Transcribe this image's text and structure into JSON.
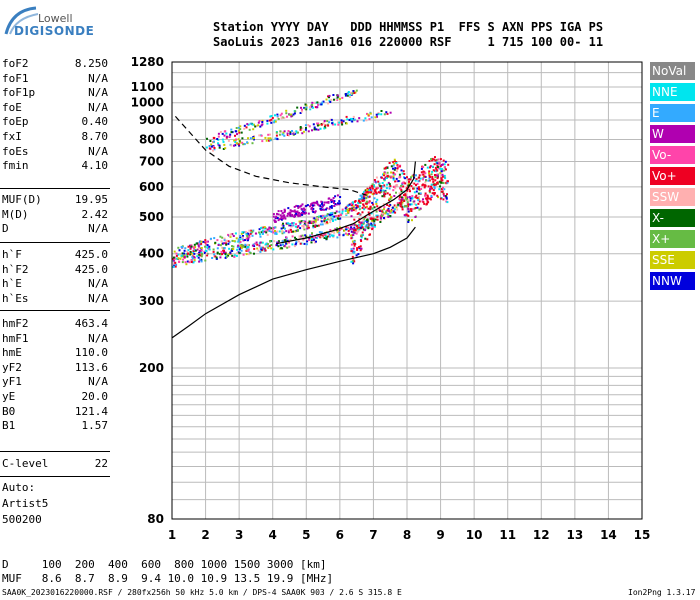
{
  "logo": {
    "line1": "Lowell",
    "line2": "DIGISONDE"
  },
  "header": {
    "line1": "Station YYYY DAY   DDD HHMMSS P1  FFS S AXN PPS IGA PS",
    "line2": "SaoLuis 2023 Jan16 016 220000 RSF     1 715 100 00- 11"
  },
  "params": {
    "group1": [
      {
        "name": "foF2",
        "value": "8.250"
      },
      {
        "name": "foF1",
        "value": "N/A"
      },
      {
        "name": "foF1p",
        "value": "N/A"
      },
      {
        "name": "foE",
        "value": "N/A"
      },
      {
        "name": "foEp",
        "value": "0.40"
      },
      {
        "name": "fxI",
        "value": "8.70"
      },
      {
        "name": "foEs",
        "value": "N/A"
      },
      {
        "name": "fmin",
        "value": "4.10"
      }
    ],
    "group2": [
      {
        "name": "MUF(D)",
        "value": "19.95"
      },
      {
        "name": "M(D)",
        "value": "2.42"
      },
      {
        "name": "D",
        "value": "N/A"
      }
    ],
    "group3": [
      {
        "name": "h`F",
        "value": "425.0"
      },
      {
        "name": "h`F2",
        "value": "425.0"
      },
      {
        "name": "h`E",
        "value": "N/A"
      },
      {
        "name": "h`Es",
        "value": "N/A"
      }
    ],
    "group4": [
      {
        "name": "hmF2",
        "value": "463.4"
      },
      {
        "name": "hmF1",
        "value": "N/A"
      },
      {
        "name": "hmE",
        "value": "110.0"
      },
      {
        "name": "yF2",
        "value": "113.6"
      },
      {
        "name": "yF1",
        "value": "N/A"
      },
      {
        "name": "yE",
        "value": "20.0"
      },
      {
        "name": "B0",
        "value": "121.4"
      },
      {
        "name": "B1",
        "value": "1.57"
      }
    ],
    "clevel": {
      "name": "C-level",
      "value": "22"
    },
    "auto_lines": [
      "Auto:",
      "Artist5",
      "500200"
    ]
  },
  "legend": [
    {
      "label": "NoVal",
      "color": "#888888"
    },
    {
      "label": "NNE",
      "color": "#00e5ee"
    },
    {
      "label": "E",
      "color": "#33aaff"
    },
    {
      "label": "W",
      "color": "#b000b0"
    },
    {
      "label": "Vo-",
      "color": "#ff44aa"
    },
    {
      "label": "Vo+",
      "color": "#ee0022"
    },
    {
      "label": "SSW",
      "color": "#ffb0b0"
    },
    {
      "label": "X-",
      "color": "#006600"
    },
    {
      "label": "X+",
      "color": "#66bb44"
    },
    {
      "label": "SSE",
      "color": "#cccc00"
    },
    {
      "label": "NNW",
      "color": "#0000dd"
    }
  ],
  "footer": {
    "d_row": "D     100  200  400  600  800 1000 1500 3000 [km]",
    "muf_row": "MUF   8.6  8.7  8.9  9.4 10.0 10.9 13.5 19.9 [MHz]",
    "info": "SAA0K_2023016220000.RSF / 280fx256h 50 kHz 5.0 km / DPS-4 SAA0K 903 / 2.6 S 315.8 E",
    "version": "Ion2Png 1.3.17"
  },
  "chart_data": {
    "type": "scatter",
    "xlim": [
      1,
      15
    ],
    "ylim": [
      80,
      1280
    ],
    "y_scale": "log",
    "x_ticks": [
      1,
      2,
      3,
      4,
      5,
      6,
      7,
      8,
      9,
      10,
      11,
      12,
      13,
      14,
      15
    ],
    "y_ticks": [
      80,
      200,
      300,
      400,
      500,
      600,
      700,
      800,
      900,
      1000,
      1100,
      1280
    ],
    "y_extra_gridlines": [
      90,
      100,
      110,
      120,
      130,
      140,
      150,
      160,
      170,
      180,
      190,
      1200
    ],
    "grid": true,
    "legend_position": "right",
    "lines": [
      {
        "style": "solid",
        "x": [
          1.0,
          1.5,
          2.0,
          3.0,
          4.0,
          5.0,
          6.0,
          7.0,
          7.5,
          8.0,
          8.25
        ],
        "y": [
          240,
          258,
          278,
          312,
          343,
          363,
          382,
          400,
          416,
          440,
          470
        ]
      },
      {
        "style": "solid",
        "x": [
          4.1,
          5.0,
          5.8,
          6.4,
          6.8,
          7.2,
          7.6,
          8.0,
          8.2,
          8.25
        ],
        "y": [
          425,
          440,
          460,
          480,
          505,
          530,
          555,
          590,
          630,
          700
        ]
      },
      {
        "style": "dashed",
        "x": [
          1.1,
          1.5,
          2.0,
          2.7,
          3.5,
          4.5,
          5.5,
          6.3,
          6.8
        ],
        "y": [
          920,
          840,
          750,
          680,
          640,
          615,
          600,
          590,
          570
        ]
      }
    ],
    "traces": [
      {
        "name": "F2 1st hop low",
        "x": [
          1.0,
          2.0,
          3.0,
          4.0,
          5.0,
          6.0,
          6.8,
          7.5,
          8.0
        ],
        "y": [
          385,
          400,
          410,
          425,
          440,
          460,
          480,
          520,
          560
        ]
      },
      {
        "name": "F2 1st hop high",
        "x": [
          1.0,
          2.0,
          3.0,
          4.0,
          5.0,
          6.0,
          6.5,
          7.0
        ],
        "y": [
          400,
          425,
          445,
          465,
          480,
          510,
          550,
          610
        ]
      },
      {
        "name": "F2 2nd hop lower",
        "x": [
          2.0,
          3.0,
          4.0,
          5.0,
          6.0,
          7.0,
          7.5
        ],
        "y": [
          760,
          790,
          820,
          860,
          900,
          930,
          960
        ]
      },
      {
        "name": "F2 2nd hop upper",
        "x": [
          2.0,
          3.0,
          4.0,
          5.0,
          6.0,
          6.5
        ],
        "y": [
          800,
          850,
          910,
          980,
          1050,
          1070
        ]
      },
      {
        "name": "spread F",
        "x": [
          6.3,
          6.8,
          7.2,
          7.6,
          8.0,
          8.4,
          8.8,
          9.2
        ],
        "y": [
          450,
          520,
          580,
          640,
          560,
          600,
          650,
          620
        ]
      },
      {
        "name": "W cluster",
        "x": [
          4.0,
          4.5,
          5.0,
          5.5,
          6.0
        ],
        "y": [
          500,
          515,
          530,
          540,
          560
        ]
      }
    ]
  }
}
